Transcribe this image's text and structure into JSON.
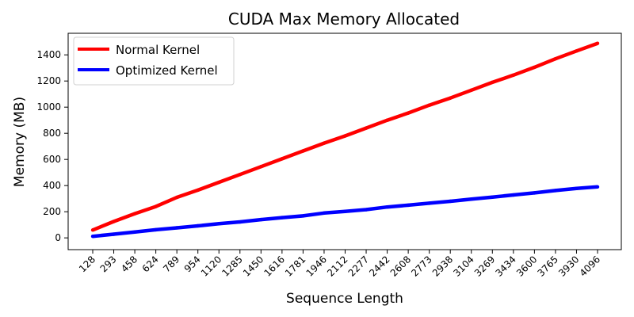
{
  "chart_data": {
    "type": "line",
    "title": "CUDA Max Memory Allocated",
    "xlabel": "Sequence Length",
    "ylabel": "Memory (MB)",
    "categories": [
      "128",
      "293",
      "458",
      "624",
      "789",
      "954",
      "1120",
      "1285",
      "1450",
      "1616",
      "1781",
      "1946",
      "2112",
      "2277",
      "2442",
      "2608",
      "2773",
      "2938",
      "3104",
      "3269",
      "3434",
      "3600",
      "3765",
      "3930",
      "4096"
    ],
    "ylim": [
      -90,
      1565
    ],
    "yticks": [
      0,
      200,
      400,
      600,
      800,
      1000,
      1200,
      1400
    ],
    "grid": false,
    "legend_position": "top-left",
    "series": [
      {
        "name": "Normal Kernel",
        "color": "#ff0000",
        "values": [
          60,
          125,
          185,
          240,
          310,
          365,
          425,
          485,
          545,
          605,
          665,
          725,
          780,
          840,
          900,
          955,
          1015,
          1070,
          1130,
          1190,
          1245,
          1305,
          1370,
          1430,
          1488
        ]
      },
      {
        "name": "Optimized Kernel",
        "color": "#0000ff",
        "values": [
          12,
          28,
          45,
          62,
          77,
          92,
          108,
          122,
          140,
          155,
          168,
          190,
          202,
          216,
          236,
          250,
          265,
          280,
          296,
          312,
          328,
          344,
          362,
          378,
          390
        ]
      }
    ]
  }
}
